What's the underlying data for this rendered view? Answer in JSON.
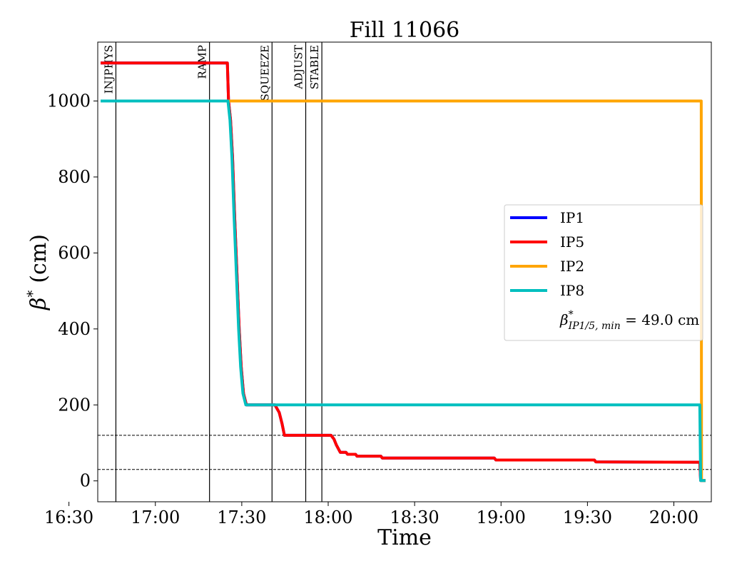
{
  "chart_data": {
    "type": "line",
    "title": "Fill 11066",
    "xlabel": "Time",
    "ylabel_symbol": "β",
    "ylabel_sup": "*",
    "ylabel_unit": "(cm)",
    "x_unit": "minutes",
    "xlim": [
      1000,
      1213
    ],
    "ylim": [
      -55,
      1155
    ],
    "x_ticks": [
      {
        "value": 990,
        "label": "16:30"
      },
      {
        "value": 1020,
        "label": "17:00"
      },
      {
        "value": 1050,
        "label": "17:30"
      },
      {
        "value": 1080,
        "label": "18:00"
      },
      {
        "value": 1110,
        "label": "18:30"
      },
      {
        "value": 1140,
        "label": "19:00"
      },
      {
        "value": 1170,
        "label": "19:30"
      },
      {
        "value": 1200,
        "label": "20:00"
      }
    ],
    "y_ticks": [
      {
        "value": 0,
        "label": "0"
      },
      {
        "value": 200,
        "label": "200"
      },
      {
        "value": 400,
        "label": "400"
      },
      {
        "value": 600,
        "label": "600"
      },
      {
        "value": 800,
        "label": "800"
      },
      {
        "value": 1000,
        "label": "1000"
      }
    ],
    "phases": [
      {
        "label": "INJPHYS",
        "x": 1006.3
      },
      {
        "label": "RAMP",
        "x": 1038.8
      },
      {
        "label": "SQUEEZE",
        "x": 1060.5
      },
      {
        "label": "ADJUST",
        "x": 1072.2
      },
      {
        "label": "STABLE",
        "x": 1077.8
      }
    ],
    "hlines": [
      120,
      30
    ],
    "series": [
      {
        "name": "IP1",
        "color": "#0000ff",
        "points": [
          [
            1001,
            1100
          ],
          [
            1045.0,
            1100
          ],
          [
            1045.4,
            1000
          ],
          [
            1046.1,
            950
          ],
          [
            1046.8,
            850
          ],
          [
            1047.5,
            700
          ],
          [
            1048.3,
            550
          ],
          [
            1049.1,
            400
          ],
          [
            1049.8,
            300
          ],
          [
            1050.6,
            230
          ],
          [
            1051.6,
            200
          ],
          [
            1059.0,
            200
          ],
          [
            1061.5,
            200
          ],
          [
            1063.0,
            180
          ],
          [
            1064.0,
            150
          ],
          [
            1064.8,
            120
          ],
          [
            1074.0,
            120
          ],
          [
            1081.0,
            120
          ],
          [
            1082.0,
            110
          ],
          [
            1082.8,
            95
          ],
          [
            1084.2,
            75
          ],
          [
            1086.2,
            75
          ],
          [
            1086.7,
            70
          ],
          [
            1089.5,
            70
          ],
          [
            1090.0,
            65
          ],
          [
            1098.3,
            65
          ],
          [
            1098.8,
            60
          ],
          [
            1137.7,
            60
          ],
          [
            1138.2,
            55
          ],
          [
            1172.4,
            55
          ],
          [
            1172.9,
            50
          ],
          [
            1209.0,
            49
          ],
          [
            1209.3,
            1
          ],
          [
            1211.0,
            1
          ]
        ]
      },
      {
        "name": "IP5",
        "color": "#ff0000",
        "points": [
          [
            1001,
            1100
          ],
          [
            1045.0,
            1100
          ],
          [
            1045.4,
            1000
          ],
          [
            1046.1,
            950
          ],
          [
            1046.8,
            850
          ],
          [
            1047.5,
            700
          ],
          [
            1048.3,
            550
          ],
          [
            1049.1,
            400
          ],
          [
            1049.8,
            300
          ],
          [
            1050.6,
            230
          ],
          [
            1051.6,
            200
          ],
          [
            1059.0,
            200
          ],
          [
            1061.5,
            200
          ],
          [
            1063.0,
            180
          ],
          [
            1064.0,
            150
          ],
          [
            1064.8,
            120
          ],
          [
            1074.0,
            120
          ],
          [
            1081.0,
            120
          ],
          [
            1082.0,
            110
          ],
          [
            1082.8,
            95
          ],
          [
            1084.2,
            75
          ],
          [
            1086.2,
            75
          ],
          [
            1086.7,
            70
          ],
          [
            1089.5,
            70
          ],
          [
            1090.0,
            65
          ],
          [
            1098.3,
            65
          ],
          [
            1098.8,
            60
          ],
          [
            1137.7,
            60
          ],
          [
            1138.2,
            55
          ],
          [
            1172.4,
            55
          ],
          [
            1172.9,
            50
          ],
          [
            1209.0,
            49
          ],
          [
            1209.3,
            1
          ],
          [
            1211.0,
            1
          ]
        ]
      },
      {
        "name": "IP2",
        "color": "#ffa500",
        "points": [
          [
            1001,
            1000
          ],
          [
            1209.5,
            1000
          ],
          [
            1209.6,
            1
          ],
          [
            1211.0,
            1
          ]
        ]
      },
      {
        "name": "IP8",
        "color": "#00bfbf",
        "points": [
          [
            1001,
            1000
          ],
          [
            1045.2,
            1000
          ],
          [
            1045.9,
            950
          ],
          [
            1046.6,
            850
          ],
          [
            1047.3,
            700
          ],
          [
            1048.1,
            550
          ],
          [
            1048.9,
            400
          ],
          [
            1049.6,
            300
          ],
          [
            1050.4,
            230
          ],
          [
            1051.4,
            200
          ],
          [
            1209.0,
            200
          ],
          [
            1209.3,
            1
          ],
          [
            1211.0,
            1
          ]
        ]
      }
    ],
    "legend": {
      "position": "center-right",
      "entries": [
        "IP1",
        "IP5",
        "IP2",
        "IP8"
      ],
      "note_symbol": "β",
      "note_sup": "*",
      "note_sub": "IP1/5, min",
      "note_value": " = 49.0 cm"
    },
    "grid": false
  }
}
